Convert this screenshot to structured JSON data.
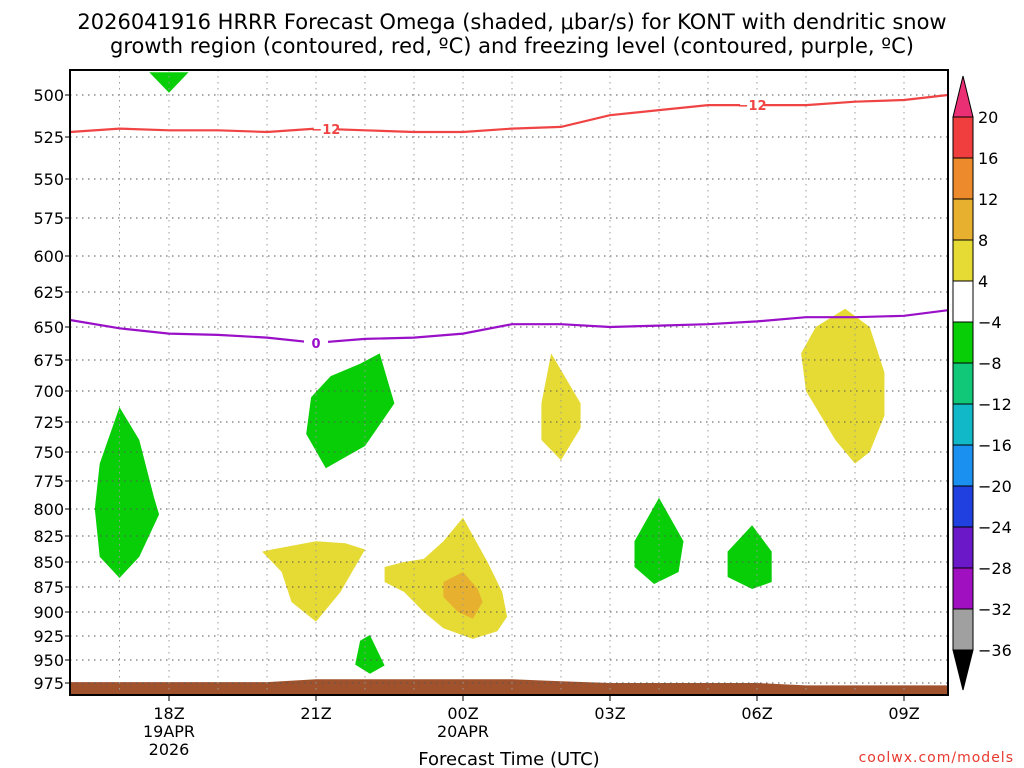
{
  "chart_data": {
    "type": "time-height contour",
    "title_line1": "2026041916 HRRR Forecast Omega (shaded, μbar/s) for KONT with dendritic snow",
    "title_line2": "growth region (contoured, red, ºC) and freezing level (contoured, purple, ºC)",
    "xlabel": "Forecast Time (UTC)",
    "credit": "coolwx.com/models",
    "x_ticks": [
      {
        "hour": 18,
        "label": "18Z",
        "date": "19APR",
        "year": "2026"
      },
      {
        "hour": 21,
        "label": "21Z",
        "date": "",
        "year": ""
      },
      {
        "hour": 24,
        "label": "00Z",
        "date": "20APR",
        "year": ""
      },
      {
        "hour": 27,
        "label": "03Z",
        "date": "",
        "year": ""
      },
      {
        "hour": 30,
        "label": "06Z",
        "date": "",
        "year": ""
      },
      {
        "hour": 33,
        "label": "09Z",
        "date": "",
        "year": ""
      }
    ],
    "x_range_hours": [
      16,
      34
    ],
    "y_range_hPa": [
      980,
      478
    ],
    "y_ticks": [
      500,
      525,
      550,
      575,
      600,
      625,
      650,
      675,
      700,
      725,
      750,
      775,
      800,
      825,
      850,
      875,
      900,
      925,
      950,
      975
    ],
    "colorbar": {
      "levels": [
        20,
        16,
        12,
        8,
        4,
        -4,
        -8,
        -12,
        -16,
        -20,
        -24,
        -28,
        -32,
        -36
      ],
      "level_labels": [
        "20",
        "16",
        "12",
        "8",
        "4",
        "−4",
        "−8",
        "−12",
        "−16",
        "−20",
        "−24",
        "−28",
        "−32",
        "−36"
      ],
      "colors": [
        "#ea2f74",
        "#f03e3e",
        "#ec8a2c",
        "#e7b02f",
        "#e6da35",
        "#ffffff",
        "#08ce08",
        "#10c878",
        "#10b8c8",
        "#1a90f0",
        "#2040e0",
        "#6a18c8",
        "#a010c0",
        "#a0a0a0",
        "#000000"
      ]
    },
    "contours": [
      {
        "name": "dendritic-12C",
        "label": "−12",
        "color": "#f04444",
        "points": [
          [
            16,
            522
          ],
          [
            17,
            520
          ],
          [
            18,
            521
          ],
          [
            19,
            521
          ],
          [
            20,
            522
          ],
          [
            21,
            520
          ],
          [
            22,
            521
          ],
          [
            23,
            522
          ],
          [
            24,
            522
          ],
          [
            25,
            520
          ],
          [
            26,
            519
          ],
          [
            27,
            512
          ],
          [
            28,
            509
          ],
          [
            29,
            506
          ],
          [
            30,
            506
          ],
          [
            31,
            506
          ],
          [
            32,
            504
          ],
          [
            33,
            503
          ],
          [
            34,
            500
          ]
        ],
        "label_positions": [
          21.2,
          29.9
        ]
      },
      {
        "name": "freezing-0C",
        "label": "0",
        "color": "#9a10c8",
        "points": [
          [
            16,
            645
          ],
          [
            17,
            651
          ],
          [
            18,
            655
          ],
          [
            19,
            656
          ],
          [
            20,
            658
          ],
          [
            21,
            662
          ],
          [
            22,
            659
          ],
          [
            23,
            658
          ],
          [
            24,
            655
          ],
          [
            25,
            648
          ],
          [
            26,
            648
          ],
          [
            27,
            650
          ],
          [
            28,
            649
          ],
          [
            29,
            648
          ],
          [
            30,
            646
          ],
          [
            31,
            643
          ],
          [
            32,
            643
          ],
          [
            33,
            642
          ],
          [
            34,
            638
          ]
        ],
        "label_positions": [
          21.0
        ]
      }
    ],
    "omega_regions": [
      {
        "value_range": [
          -8,
          -4
        ],
        "color": "#08ce08",
        "points": [
          [
            17.6,
            480
          ],
          [
            18.4,
            480
          ],
          [
            18.0,
            498
          ]
        ]
      },
      {
        "value_range": [
          -8,
          -4
        ],
        "color": "#08ce08",
        "points": [
          [
            17.0,
            713
          ],
          [
            17.4,
            740
          ],
          [
            17.7,
            790
          ],
          [
            17.8,
            805
          ],
          [
            17.4,
            845
          ],
          [
            17.0,
            866
          ],
          [
            16.6,
            845
          ],
          [
            16.5,
            800
          ],
          [
            16.6,
            760
          ]
        ]
      },
      {
        "value_range": [
          -8,
          -4
        ],
        "color": "#08ce08",
        "points": [
          [
            21.3,
            688
          ],
          [
            21.9,
            678
          ],
          [
            22.3,
            670
          ],
          [
            22.6,
            710
          ],
          [
            22.0,
            745
          ],
          [
            21.2,
            764
          ],
          [
            20.8,
            735
          ],
          [
            20.9,
            705
          ]
        ]
      },
      {
        "value_range": [
          -8,
          -4
        ],
        "color": "#08ce08",
        "points": [
          [
            22.1,
            924
          ],
          [
            22.4,
            956
          ],
          [
            22.1,
            965
          ],
          [
            21.8,
            955
          ],
          [
            21.9,
            930
          ]
        ]
      },
      {
        "value_range": [
          -8,
          -4
        ],
        "color": "#08ce08",
        "points": [
          [
            28.0,
            790
          ],
          [
            28.5,
            830
          ],
          [
            28.4,
            860
          ],
          [
            27.9,
            872
          ],
          [
            27.5,
            855
          ],
          [
            27.5,
            830
          ]
        ]
      },
      {
        "value_range": [
          -8,
          -4
        ],
        "color": "#08ce08",
        "points": [
          [
            29.9,
            815
          ],
          [
            30.3,
            840
          ],
          [
            30.3,
            870
          ],
          [
            29.9,
            877
          ],
          [
            29.4,
            865
          ],
          [
            29.4,
            840
          ]
        ]
      },
      {
        "value_range": [
          4,
          8
        ],
        "color": "#e6da35",
        "points": [
          [
            25.8,
            670
          ],
          [
            26.4,
            710
          ],
          [
            26.4,
            730
          ],
          [
            26.0,
            757
          ],
          [
            25.6,
            740
          ],
          [
            25.6,
            710
          ]
        ]
      },
      {
        "value_range": [
          4,
          8
        ],
        "color": "#e6da35",
        "points": [
          [
            31.8,
            637
          ],
          [
            32.3,
            650
          ],
          [
            32.6,
            685
          ],
          [
            32.6,
            720
          ],
          [
            32.3,
            750
          ],
          [
            32.0,
            760
          ],
          [
            31.6,
            740
          ],
          [
            31.0,
            700
          ],
          [
            30.9,
            670
          ],
          [
            31.2,
            650
          ]
        ]
      },
      {
        "value_range": [
          4,
          8
        ],
        "color": "#e6da35",
        "points": [
          [
            20.1,
            838
          ],
          [
            21.0,
            830
          ],
          [
            21.6,
            832
          ],
          [
            22.0,
            838
          ],
          [
            21.5,
            880
          ],
          [
            21.0,
            910
          ],
          [
            20.5,
            890
          ],
          [
            20.3,
            860
          ],
          [
            19.9,
            840
          ]
        ]
      },
      {
        "value_range": [
          4,
          8
        ],
        "color": "#e6da35",
        "points": [
          [
            22.4,
            855
          ],
          [
            22.8,
            850
          ],
          [
            23.2,
            847
          ],
          [
            23.6,
            830
          ],
          [
            24.0,
            808
          ],
          [
            24.5,
            850
          ],
          [
            24.8,
            880
          ],
          [
            24.9,
            905
          ],
          [
            24.7,
            920
          ],
          [
            24.2,
            928
          ],
          [
            23.6,
            917
          ],
          [
            23.2,
            900
          ],
          [
            22.8,
            880
          ],
          [
            22.4,
            870
          ]
        ]
      },
      {
        "value_range": [
          8,
          12
        ],
        "color": "#e7b02f",
        "points": [
          [
            24.0,
            860
          ],
          [
            24.3,
            877
          ],
          [
            24.4,
            890
          ],
          [
            24.2,
            907
          ],
          [
            23.9,
            900
          ],
          [
            23.6,
            885
          ],
          [
            23.6,
            870
          ]
        ]
      }
    ],
    "terrain": {
      "color": "#a0522d",
      "points": [
        [
          16,
          974
        ],
        [
          20,
          974
        ],
        [
          21,
          971
        ],
        [
          24,
          971
        ],
        [
          25,
          971
        ],
        [
          26,
          973
        ],
        [
          27,
          975
        ],
        [
          30,
          975
        ],
        [
          31,
          976
        ],
        [
          34,
          976
        ]
      ]
    }
  }
}
